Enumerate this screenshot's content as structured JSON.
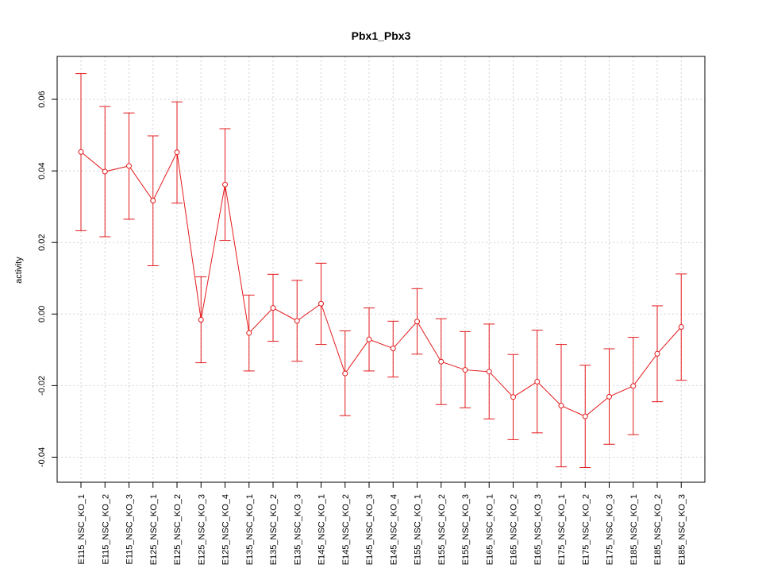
{
  "chart_data": {
    "type": "line",
    "title": "Pbx1_Pbx3",
    "xlabel": "",
    "ylabel": "activity",
    "ylim": [
      -0.047,
      0.072
    ],
    "yticks": [
      -0.04,
      -0.02,
      0.0,
      0.02,
      0.04,
      0.06
    ],
    "ytick_labels": [
      "-0.04",
      "-0.02",
      "0.00",
      "0.02",
      "0.04",
      "0.06"
    ],
    "grid": true,
    "color": "#e31a1c",
    "categories": [
      "E115_NSC_KO_1",
      "E115_NSC_KO_2",
      "E115_NSC_KO_3",
      "E125_NSC_KO_1",
      "E125_NSC_KO_2",
      "E125_NSC_KO_3",
      "E125_NSC_KO_4",
      "E135_NSC_KO_1",
      "E135_NSC_KO_2",
      "E135_NSC_KO_3",
      "E145_NSC_KO_1",
      "E145_NSC_KO_2",
      "E145_NSC_KO_3",
      "E145_NSC_KO_4",
      "E155_NSC_KO_1",
      "E155_NSC_KO_2",
      "E155_NSC_KO_3",
      "E165_NSC_KO_1",
      "E165_NSC_KO_2",
      "E165_NSC_KO_3",
      "E175_NSC_KO_1",
      "E175_NSC_KO_2",
      "E175_NSC_KO_3",
      "E185_NSC_KO_1",
      "E185_NSC_KO_2",
      "E185_NSC_KO_3"
    ],
    "values": [
      0.0453,
      0.0398,
      0.0414,
      0.0317,
      0.0452,
      -0.0016,
      0.0362,
      -0.0053,
      0.0017,
      -0.0019,
      0.0029,
      -0.0166,
      -0.0071,
      -0.0096,
      -0.0021,
      -0.0133,
      -0.0156,
      -0.0161,
      -0.0232,
      -0.0189,
      -0.0256,
      -0.0286,
      -0.0231,
      -0.0201,
      -0.0111,
      -0.0036
    ],
    "upper": [
      0.0672,
      0.058,
      0.0562,
      0.0498,
      0.0593,
      0.0104,
      0.0518,
      0.0053,
      0.0111,
      0.0094,
      0.0142,
      -0.0047,
      0.0017,
      -0.002,
      0.0071,
      -0.0013,
      -0.0049,
      -0.0028,
      -0.0113,
      -0.0045,
      -0.0085,
      -0.0143,
      -0.0097,
      -0.0065,
      0.0023,
      0.0112
    ],
    "lower": [
      0.0233,
      0.0216,
      0.0265,
      0.0135,
      0.031,
      -0.0136,
      0.0206,
      -0.0159,
      -0.0076,
      -0.0132,
      -0.0085,
      -0.0284,
      -0.0159,
      -0.0176,
      -0.0112,
      -0.0253,
      -0.0262,
      -0.0293,
      -0.0351,
      -0.0332,
      -0.0427,
      -0.0429,
      -0.0364,
      -0.0337,
      -0.0245,
      -0.0185
    ]
  }
}
